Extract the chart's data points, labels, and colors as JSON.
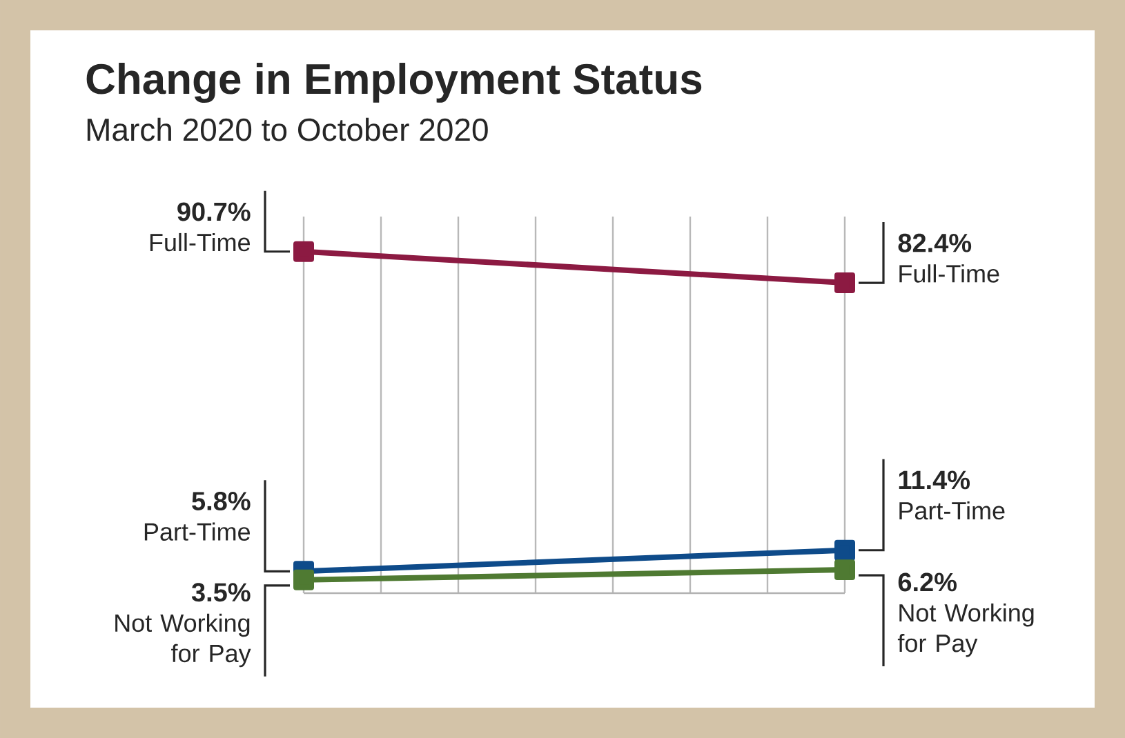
{
  "chart_data": {
    "type": "line",
    "title": "Change in Employment Status",
    "subtitle": "March 2020 to October 2020",
    "categories": [
      null,
      null
    ],
    "series": [
      {
        "name": "Full-Time",
        "color": "#8c1a42",
        "values": [
          90.7,
          82.4
        ],
        "value_labels": [
          "90.7%",
          "82.4%"
        ]
      },
      {
        "name": "Part-Time",
        "color": "#0e4b8a",
        "values": [
          5.8,
          11.4
        ],
        "value_labels": [
          "5.8%",
          "11.4%"
        ]
      },
      {
        "name": "Not Working for Pay",
        "color": "#4f7a32",
        "values": [
          3.5,
          6.2
        ],
        "value_labels": [
          "3.5%",
          "6.2%"
        ]
      }
    ],
    "ylim": [
      0,
      100
    ],
    "grid": "x",
    "legend": false,
    "tick_labels": false,
    "marker": "square",
    "line_style": "solid"
  }
}
